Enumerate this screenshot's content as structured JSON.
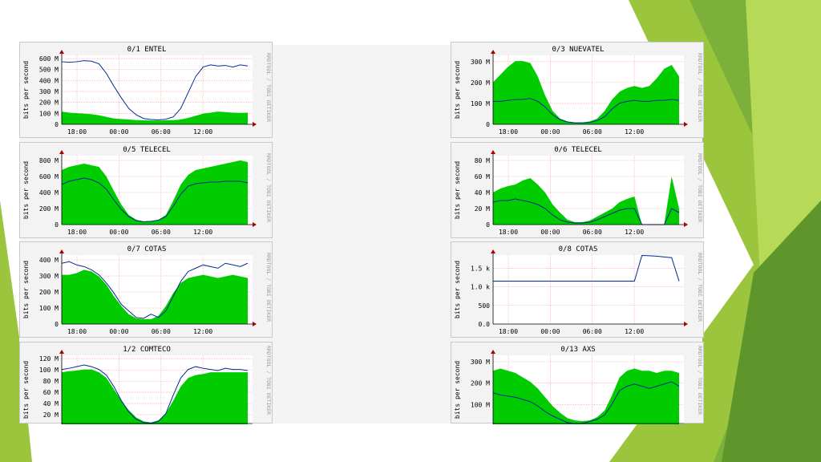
{
  "slide": {
    "accent_colors": [
      "#9bc53d",
      "#7bb03a",
      "#5e962b",
      "#b6d957"
    ]
  },
  "graph_common": {
    "ylabel": "bits per second",
    "side_label": "RRDTOOL / TOBI OETIKER",
    "x_ticks": [
      "18:00",
      "00:00",
      "06:00",
      "12:00"
    ],
    "in_color": "#00cc00",
    "out_color": "#002a97",
    "grid_color": "#ff9a9a"
  },
  "graphs": [
    {
      "title": "0/1 ENTEL",
      "y_ticks": [
        "0",
        "100 M",
        "200 M",
        "300 M",
        "400 M",
        "500 M",
        "600 M"
      ],
      "ymax": 650,
      "in": [
        120,
        110,
        105,
        100,
        95,
        85,
        70,
        55,
        50,
        45,
        40,
        38,
        36,
        35,
        38,
        40,
        45,
        60,
        80,
        100,
        110,
        120,
        115,
        110,
        108,
        110
      ],
      "out": [
        590,
        585,
        590,
        600,
        595,
        570,
        480,
        360,
        250,
        150,
        90,
        55,
        45,
        42,
        48,
        70,
        150,
        300,
        450,
        540,
        560,
        550,
        555,
        540,
        560,
        550
      ]
    },
    {
      "title": "0/3 NUEVATEL",
      "y_ticks": [
        "0",
        "100 M",
        "200 M",
        "300 M"
      ],
      "ymax": 360,
      "in": [
        220,
        260,
        300,
        330,
        330,
        320,
        250,
        150,
        70,
        30,
        15,
        10,
        10,
        15,
        30,
        70,
        130,
        170,
        190,
        200,
        190,
        200,
        240,
        290,
        310,
        250
      ],
      "out": [
        120,
        120,
        125,
        130,
        130,
        135,
        120,
        90,
        50,
        25,
        12,
        8,
        8,
        10,
        20,
        40,
        80,
        110,
        120,
        125,
        120,
        120,
        125,
        125,
        130,
        125
      ]
    },
    {
      "title": "0/5 TELECEL",
      "y_ticks": [
        "0",
        "200 M",
        "400 M",
        "600 M",
        "800 M"
      ],
      "ymax": 860,
      "in": [
        680,
        720,
        740,
        760,
        740,
        720,
        600,
        420,
        250,
        120,
        60,
        40,
        45,
        60,
        120,
        300,
        500,
        620,
        680,
        700,
        720,
        740,
        760,
        780,
        800,
        780
      ],
      "out": [
        500,
        540,
        560,
        580,
        560,
        520,
        440,
        310,
        190,
        100,
        50,
        35,
        40,
        55,
        100,
        230,
        380,
        480,
        510,
        520,
        530,
        530,
        540,
        540,
        540,
        520
      ]
    },
    {
      "title": "0/6 TELECEL",
      "y_ticks": [
        "0",
        "20 M",
        "40 M",
        "60 M",
        "80 M"
      ],
      "ymax": 86,
      "in": [
        40,
        45,
        48,
        50,
        55,
        58,
        50,
        40,
        25,
        15,
        6,
        3,
        3,
        5,
        10,
        15,
        20,
        28,
        32,
        35,
        0,
        0,
        0,
        0,
        60,
        20
      ],
      "out": [
        28,
        30,
        30,
        32,
        30,
        28,
        25,
        20,
        12,
        6,
        3,
        2,
        2,
        3,
        6,
        10,
        14,
        18,
        20,
        20,
        0,
        0,
        0,
        0,
        20,
        15
      ]
    },
    {
      "title": "0/7 COTAS",
      "y_ticks": [
        "0",
        "100 M",
        "200 M",
        "300 M",
        "400 M"
      ],
      "ymax": 420,
      "in": [
        300,
        300,
        310,
        330,
        320,
        290,
        240,
        170,
        110,
        60,
        35,
        30,
        30,
        50,
        110,
        190,
        250,
        280,
        290,
        300,
        290,
        280,
        290,
        300,
        290,
        280
      ],
      "out": [
        370,
        380,
        360,
        350,
        330,
        300,
        250,
        190,
        120,
        80,
        40,
        35,
        60,
        40,
        80,
        170,
        260,
        320,
        340,
        360,
        350,
        340,
        370,
        360,
        350,
        370
      ]
    },
    {
      "title": "0/8 COTAS",
      "y_ticks": [
        "0.0",
        "500",
        "1.0 k",
        "1.5 k"
      ],
      "ymax": 1850,
      "in": [
        0,
        0,
        0,
        0,
        0,
        0,
        0,
        0,
        0,
        0,
        0,
        0,
        0,
        0,
        0,
        0,
        0,
        0,
        0,
        0,
        0,
        0,
        0,
        0,
        0,
        0
      ],
      "out": [
        1150,
        1150,
        1150,
        1150,
        1150,
        1150,
        1150,
        1150,
        1150,
        1150,
        1150,
        1150,
        1150,
        1150,
        1150,
        1150,
        1150,
        1150,
        1150,
        1150,
        1840,
        1830,
        1820,
        1800,
        1780,
        1150
      ]
    },
    {
      "title": "1/2 COMTECO",
      "y_ticks": [
        "0",
        "20 M",
        "40 M",
        "60 M",
        "80 M",
        "100 M",
        "120 M"
      ],
      "ymax": 125,
      "in": [
        95,
        97,
        98,
        100,
        100,
        95,
        85,
        65,
        45,
        28,
        15,
        8,
        6,
        10,
        22,
        45,
        70,
        85,
        90,
        92,
        95,
        95,
        95,
        95,
        95,
        95
      ],
      "out": [
        100,
        102,
        105,
        108,
        105,
        100,
        90,
        70,
        45,
        25,
        12,
        6,
        5,
        8,
        22,
        55,
        85,
        100,
        105,
        102,
        100,
        98,
        102,
        100,
        100,
        98
      ]
    },
    {
      "title": "0/13 AXS",
      "y_ticks": [
        "0",
        "100 M",
        "200 M",
        "300 M"
      ],
      "ymax": 320,
      "in": [
        250,
        260,
        250,
        240,
        220,
        200,
        170,
        130,
        90,
        60,
        35,
        25,
        22,
        25,
        40,
        70,
        140,
        220,
        250,
        260,
        250,
        250,
        240,
        250,
        250,
        240
      ],
      "out": [
        150,
        140,
        135,
        130,
        120,
        110,
        90,
        65,
        45,
        30,
        15,
        10,
        12,
        20,
        30,
        50,
        100,
        160,
        180,
        190,
        180,
        170,
        180,
        190,
        200,
        180
      ]
    }
  ]
}
